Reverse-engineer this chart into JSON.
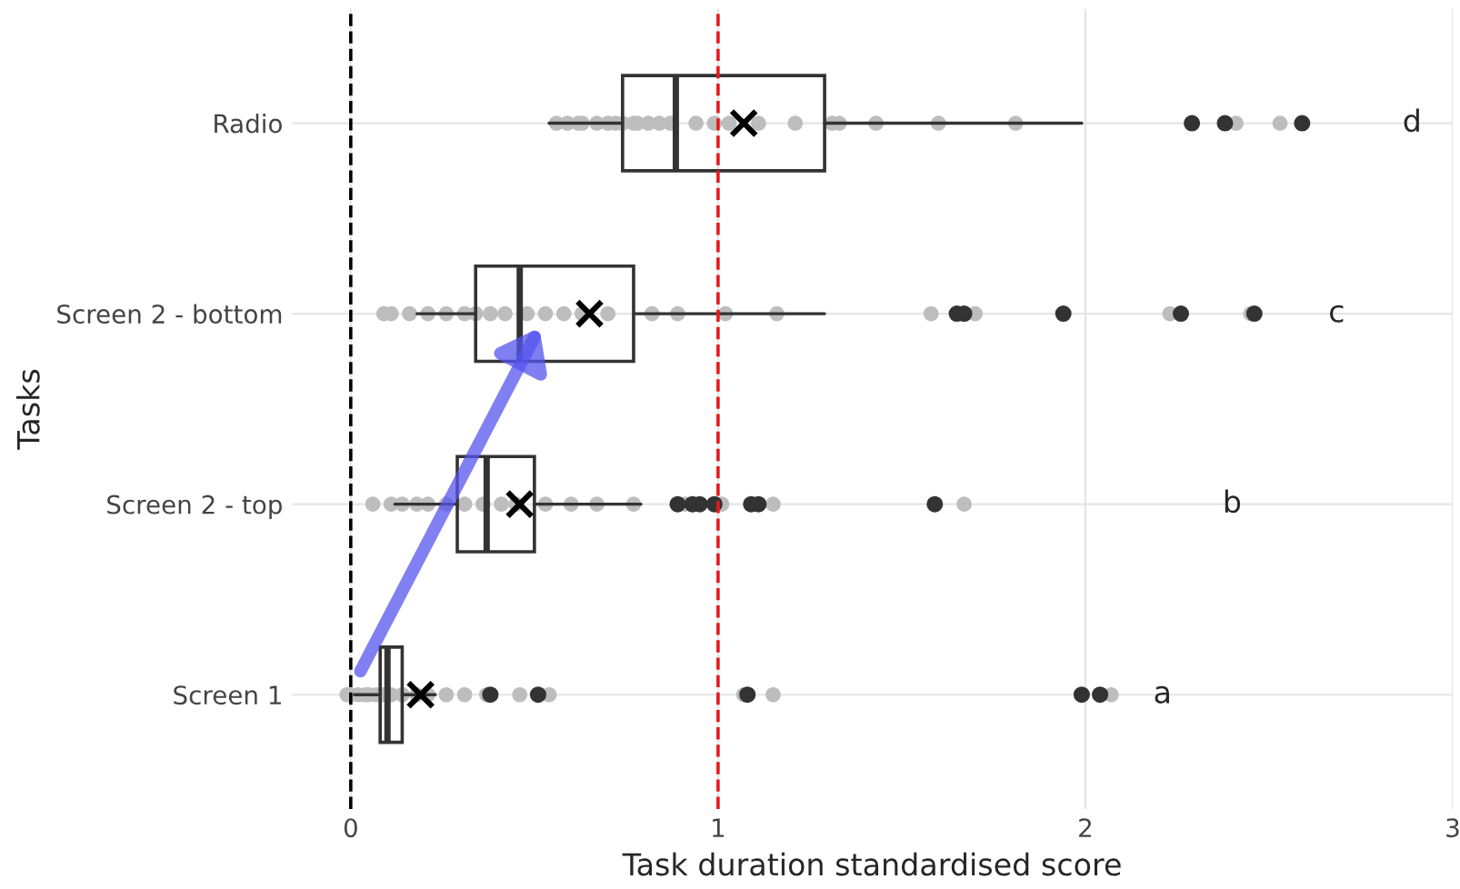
{
  "chart_data": {
    "type": "box",
    "orientation": "horizontal",
    "xlabel": "Task duration standardised score",
    "ylabel": "Tasks",
    "categories": [
      "Radio",
      "Screen 2 - bottom",
      "Screen 2 - top",
      "Screen 1"
    ],
    "xlim": [
      -0.16,
      3
    ],
    "xticks": [
      0,
      1,
      2,
      3
    ],
    "grid": true,
    "series": [
      {
        "type": "scatter",
        "color": "#bdbdbd",
        "marker": "circle",
        "x": [
          "Radio",
          "Radio",
          "Radio",
          "Radio",
          "Radio",
          "Radio",
          "Radio",
          "Radio",
          "Radio",
          "Radio",
          "Radio",
          "Radio",
          "Radio",
          "Radio",
          "Radio",
          "Radio",
          "Radio",
          "Radio",
          "Radio",
          "Radio",
          "Radio",
          "Radio",
          "Radio",
          "Radio",
          "Radio",
          "Screen 2 - bottom",
          "Screen 2 - bottom",
          "Screen 2 - bottom",
          "Screen 2 - bottom",
          "Screen 2 - bottom",
          "Screen 2 - bottom",
          "Screen 2 - bottom",
          "Screen 2 - bottom",
          "Screen 2 - bottom",
          "Screen 2 - bottom",
          "Screen 2 - bottom",
          "Screen 2 - bottom",
          "Screen 2 - bottom",
          "Screen 2 - bottom",
          "Screen 2 - bottom",
          "Screen 2 - bottom",
          "Screen 2 - bottom",
          "Screen 2 - bottom",
          "Screen 2 - bottom",
          "Screen 2 - bottom",
          "Screen 2 - bottom",
          "Screen 2 - bottom",
          "Screen 2 - top",
          "Screen 2 - top",
          "Screen 2 - top",
          "Screen 2 - top",
          "Screen 2 - top",
          "Screen 2 - top",
          "Screen 2 - top",
          "Screen 2 - top",
          "Screen 2 - top",
          "Screen 2 - top",
          "Screen 2 - top",
          "Screen 2 - top",
          "Screen 2 - top",
          "Screen 2 - top",
          "Screen 2 - top",
          "Screen 2 - top",
          "Screen 2 - top",
          "Screen 2 - top",
          "Screen 1",
          "Screen 1",
          "Screen 1",
          "Screen 1",
          "Screen 1",
          "Screen 1",
          "Screen 1",
          "Screen 1",
          "Screen 1",
          "Screen 1",
          "Screen 1",
          "Screen 1",
          "Screen 1",
          "Screen 1",
          "Screen 1",
          "Screen 1",
          "Screen 1",
          "Screen 1",
          "Screen 1"
        ],
        "values": [
          0.56,
          0.59,
          0.62,
          0.63,
          0.67,
          0.7,
          0.72,
          0.74,
          0.77,
          0.78,
          0.81,
          0.84,
          0.87,
          0.94,
          0.99,
          1.03,
          1.11,
          1.21,
          1.31,
          1.33,
          1.43,
          1.6,
          1.81,
          2.41,
          2.53,
          0.09,
          0.11,
          0.16,
          0.21,
          0.26,
          0.31,
          0.34,
          0.38,
          0.42,
          0.48,
          0.53,
          0.58,
          0.63,
          0.7,
          0.82,
          0.89,
          1.02,
          1.16,
          1.58,
          1.7,
          2.23,
          2.45,
          0.06,
          0.11,
          0.14,
          0.18,
          0.21,
          0.26,
          0.31,
          0.36,
          0.41,
          0.45,
          0.53,
          0.6,
          0.67,
          0.77,
          0.91,
          1.01,
          1.15,
          1.67,
          -0.01,
          0.0,
          0.02,
          0.04,
          0.05,
          0.07,
          0.09,
          0.11,
          0.14,
          0.18,
          0.21,
          0.26,
          0.31,
          0.37,
          0.46,
          0.54,
          1.07,
          1.15,
          2.07
        ]
      },
      {
        "color": "#333333",
        "boxes": [
          {
            "low": 0.54,
            "q1": 0.74,
            "median": 0.885,
            "q3": 1.29,
            "high": 1.99,
            "outliers": [
              2.29,
              2.38,
              2.59
            ]
          },
          {
            "low": 0.18,
            "q1": 0.34,
            "median": 0.46,
            "q3": 0.77,
            "high": 1.29,
            "outliers": [
              1.65,
              1.67,
              1.94,
              2.26,
              2.46
            ]
          },
          {
            "low": 0.12,
            "q1": 0.29,
            "median": 0.37,
            "q3": 0.5,
            "high": 0.79,
            "outliers": [
              0.89,
              0.93,
              0.95,
              0.99,
              1.09,
              1.11,
              1.59
            ]
          },
          {
            "low": 0.01,
            "q1": 0.08,
            "median": 0.1,
            "q3": 0.14,
            "high": 0.23,
            "outliers": [
              0.38,
              0.51,
              1.08,
              1.99,
              2.04
            ]
          }
        ]
      },
      {
        "type": "scatter",
        "color": "#000000",
        "marker": "cross",
        "values": [
          1.07,
          0.65,
          0.46,
          0.19
        ]
      }
    ],
    "ref_lines": [
      {
        "axis": "x",
        "value": 0,
        "color": "#000000",
        "line_style": "dashed"
      },
      {
        "axis": "x",
        "value": 1,
        "color": "#e41a1c",
        "line_style": "dashed"
      }
    ],
    "annotations": [
      "a",
      "b",
      "c",
      "d"
    ]
  }
}
